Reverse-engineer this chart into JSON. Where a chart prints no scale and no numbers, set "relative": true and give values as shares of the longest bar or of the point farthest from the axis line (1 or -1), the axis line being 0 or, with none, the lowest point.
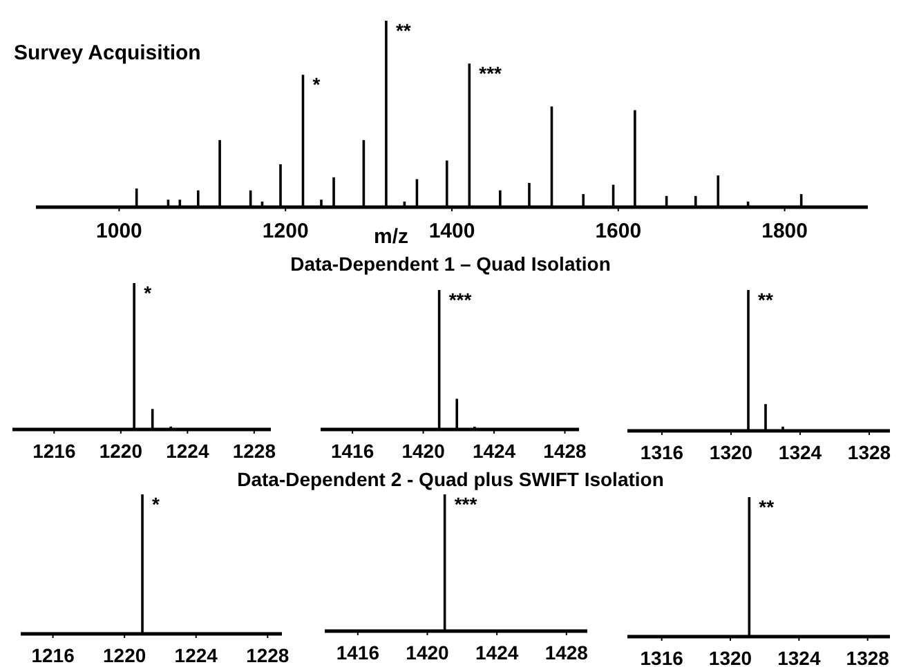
{
  "chart_data": [
    {
      "type": "bar",
      "title": "Survey Acquisition",
      "xlabel": "m/z",
      "relative": true,
      "color": "#000000",
      "xlim": [
        900,
        1900
      ],
      "xticks": [
        1000,
        1200,
        1400,
        1600,
        1800
      ],
      "x": [
        1021,
        1059,
        1073,
        1095,
        1121,
        1158,
        1172,
        1194,
        1221,
        1243,
        1258,
        1294,
        1321,
        1343,
        1358,
        1394,
        1421,
        1458,
        1493,
        1520,
        1558,
        1594,
        1620,
        1658,
        1693,
        1720,
        1756,
        1820
      ],
      "values": [
        0.1,
        0.04,
        0.04,
        0.09,
        0.36,
        0.09,
        0.03,
        0.23,
        0.71,
        0.04,
        0.16,
        0.36,
        1.0,
        0.03,
        0.15,
        0.25,
        0.77,
        0.09,
        0.13,
        0.54,
        0.07,
        0.12,
        0.52,
        0.06,
        0.06,
        0.17,
        0.03,
        0.07
      ],
      "annotations": [
        {
          "text": "*",
          "x": 1221,
          "y": 0.71
        },
        {
          "text": "**",
          "x": 1321,
          "y": 1.0
        },
        {
          "text": "***",
          "x": 1421,
          "y": 0.77
        }
      ]
    },
    {
      "type": "bar",
      "relative": true,
      "color": "#000000",
      "xlim": [
        1213.5,
        1229
      ],
      "xticks": [
        1216,
        1220,
        1224,
        1228
      ],
      "x": [
        1220.8,
        1221.9,
        1223
      ],
      "values": [
        1.0,
        0.14,
        0.02
      ],
      "annotations": [
        {
          "text": "*",
          "x": 1220.8,
          "y": 1.0
        }
      ]
    },
    {
      "type": "bar",
      "title": "Data-Dependent 1 – Quad Isolation",
      "relative": true,
      "color": "#000000",
      "xlim": [
        1414.2,
        1428.8
      ],
      "xticks": [
        1416,
        1420,
        1424,
        1428
      ],
      "x": [
        1420.9,
        1421.9,
        1422.9
      ],
      "values": [
        1.0,
        0.22,
        0.02
      ],
      "annotations": [
        {
          "text": "***",
          "x": 1420.9,
          "y": 1.0
        }
      ]
    },
    {
      "type": "bar",
      "relative": true,
      "color": "#000000",
      "xlim": [
        1314,
        1329.2
      ],
      "xticks": [
        1316,
        1320,
        1324,
        1328
      ],
      "x": [
        1321.0,
        1322.0,
        1323.0
      ],
      "values": [
        1.0,
        0.19,
        0.03
      ],
      "annotations": [
        {
          "text": "**",
          "x": 1321.0,
          "y": 1.0
        }
      ]
    },
    {
      "type": "bar",
      "relative": true,
      "color": "#000000",
      "xlim": [
        1214.2,
        1228.8
      ],
      "xticks": [
        1216,
        1220,
        1224,
        1228
      ],
      "x": [
        1221.0
      ],
      "values": [
        1.0
      ],
      "annotations": [
        {
          "text": "*",
          "x": 1221.0,
          "y": 1.0
        }
      ]
    },
    {
      "type": "bar",
      "title": "Data-Dependent 2 - Quad plus SWIFT Isolation",
      "relative": true,
      "color": "#000000",
      "xlim": [
        1414.1,
        1429.2
      ],
      "xticks": [
        1416,
        1420,
        1424,
        1428
      ],
      "x": [
        1421.0
      ],
      "values": [
        1.0
      ],
      "annotations": [
        {
          "text": "***",
          "x": 1421.0,
          "y": 1.0
        }
      ]
    },
    {
      "type": "bar",
      "relative": true,
      "color": "#000000",
      "xlim": [
        1314,
        1329.3
      ],
      "xticks": [
        1316,
        1320,
        1324,
        1328
      ],
      "x": [
        1321.1
      ],
      "values": [
        1.0
      ],
      "annotations": [
        {
          "text": "**",
          "x": 1321.1,
          "y": 1.0
        }
      ]
    }
  ]
}
